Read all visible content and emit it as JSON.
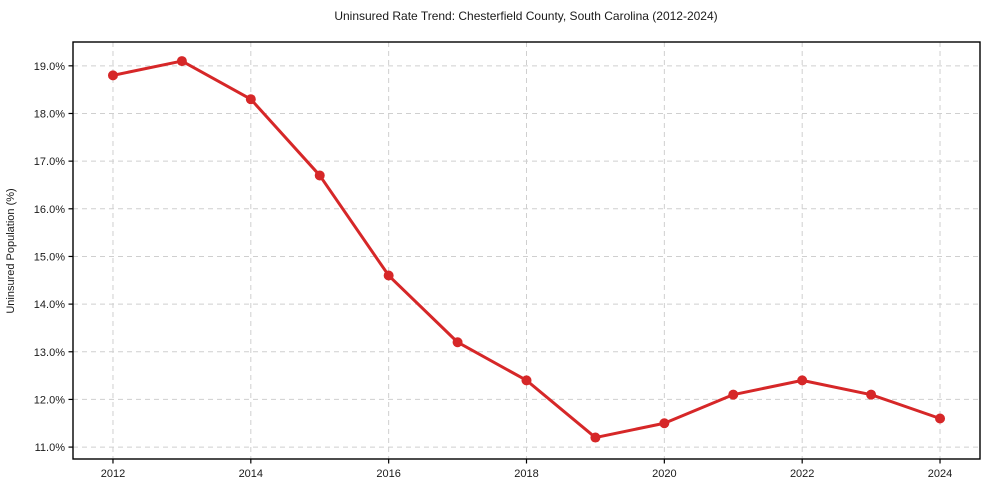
{
  "chart_data": {
    "type": "line",
    "title": "Uninsured Rate Trend: Chesterfield County, South Carolina (2012-2024)",
    "xlabel": "",
    "ylabel": "Uninsured Population (%)",
    "x": [
      2012,
      2013,
      2014,
      2015,
      2016,
      2017,
      2018,
      2019,
      2020,
      2021,
      2022,
      2023,
      2024
    ],
    "values": [
      18.8,
      19.1,
      18.3,
      16.7,
      14.6,
      13.2,
      12.4,
      11.2,
      11.5,
      12.1,
      12.4,
      12.1,
      11.6
    ],
    "x_ticks": [
      2012,
      2014,
      2016,
      2018,
      2020,
      2022,
      2024
    ],
    "x_tick_labels": [
      "2012",
      "2014",
      "2016",
      "2018",
      "2020",
      "2022",
      "2024"
    ],
    "y_ticks": [
      11,
      12,
      13,
      14,
      15,
      16,
      17,
      18,
      19
    ],
    "y_tick_labels": [
      "11.0%",
      "12.0%",
      "13.0%",
      "14.0%",
      "15.0%",
      "16.0%",
      "17.0%",
      "18.0%",
      "19.0%"
    ],
    "xlim": [
      2011.42,
      2024.58
    ],
    "ylim": [
      10.75,
      19.5
    ],
    "grid": true,
    "grid_style": "dashed",
    "legend": false,
    "marker": "circle",
    "colors": {
      "line": "#d62728",
      "marker": "#d62728",
      "grid": "#cfcfcf",
      "spine": "#000000",
      "tick_text": "#1a1a1a",
      "background": "#ffffff"
    }
  }
}
